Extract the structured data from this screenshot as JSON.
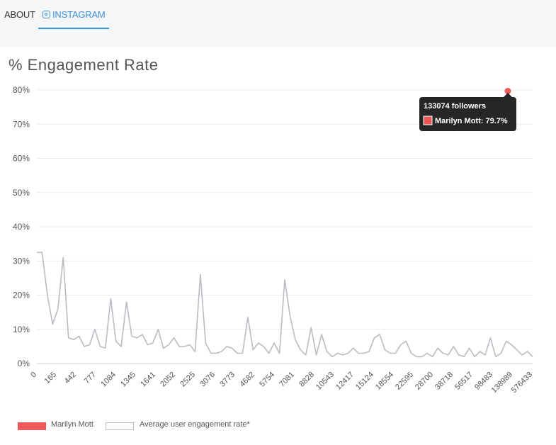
{
  "tabs": {
    "about": "ABOUT",
    "instagram": "INSTAGRAM",
    "instagram_icon": "instagram-icon"
  },
  "page_title": "% Engagement Rate",
  "chart_data": {
    "type": "line",
    "title": "% Engagement Rate",
    "ylim": [
      0,
      80
    ],
    "y_ticks": [
      "0%",
      "10%",
      "20%",
      "30%",
      "40%",
      "50%",
      "60%",
      "70%",
      "80%"
    ],
    "x_tick_labels": [
      "0",
      "165",
      "442",
      "777",
      "1084",
      "1345",
      "1641",
      "2052",
      "2525",
      "3076",
      "3773",
      "4682",
      "5754",
      "7081",
      "8828",
      "10543",
      "12417",
      "15124",
      "18554",
      "22595",
      "28700",
      "38718",
      "56517",
      "98483",
      "138989",
      "576433"
    ],
    "grid": true,
    "series": [
      {
        "name": "Average user engagement rate*",
        "color": "#bbbbc4",
        "values": [
          32.5,
          32.5,
          20,
          11.5,
          16,
          31,
          7.5,
          7,
          8,
          5,
          5.5,
          10,
          5,
          4.5,
          19,
          6.5,
          5,
          18,
          8,
          7.5,
          8.5,
          5.5,
          6,
          10,
          4.5,
          5.5,
          7.5,
          5,
          5,
          5.5,
          3.5,
          26,
          6,
          3,
          3,
          3.5,
          5,
          4.5,
          3,
          3,
          13.5,
          4,
          6,
          5,
          3,
          6,
          3,
          24.5,
          14,
          7,
          4,
          2.5,
          10.5,
          2.5,
          8.5,
          3.5,
          2,
          3,
          2.5,
          3,
          4.5,
          3,
          3,
          3.5,
          7.5,
          8.5,
          4,
          3,
          3,
          5.5,
          6.5,
          3,
          2,
          2,
          3,
          2,
          4.5,
          3,
          2.5,
          5,
          2.5,
          2,
          4.5,
          2,
          3.5,
          2.5,
          7.5,
          2,
          3,
          6.5,
          5.5,
          4,
          2.5,
          3.5,
          2
        ]
      }
    ],
    "highlight": {
      "name": "Marilyn Mott",
      "color": "#ef5858",
      "followers": 133074,
      "value": 79.7,
      "tooltip_title": "133074 followers",
      "tooltip_label": "Marilyn Mott: 79.7%"
    },
    "legend": [
      "Marilyn Mott",
      "Average user engagement rate*"
    ],
    "legend_position": "bottom-left"
  }
}
